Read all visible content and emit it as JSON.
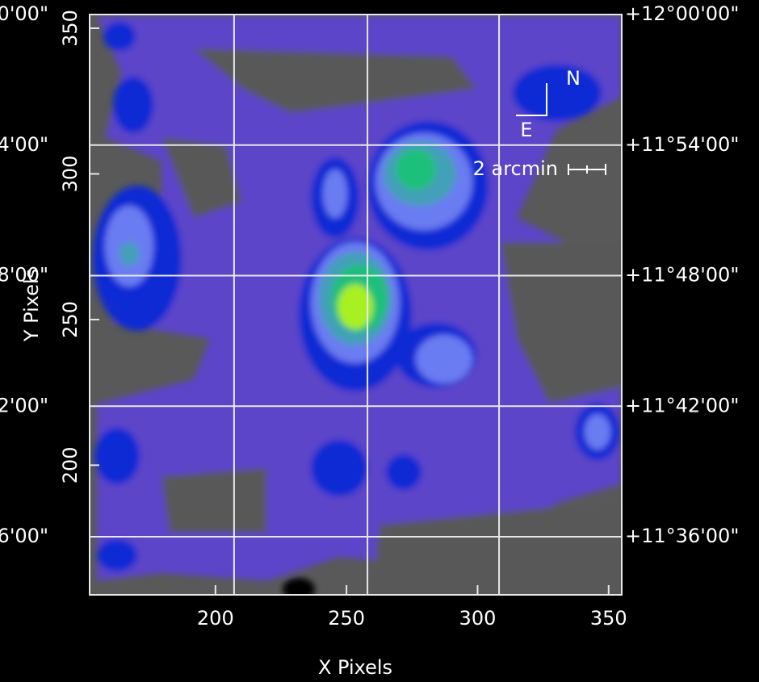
{
  "chart_data": {
    "type": "image",
    "xlabel": "X Pixels",
    "ylabel": "Y Pixels",
    "xlim": [
      152,
      355
    ],
    "xticks": [
      200,
      250,
      300,
      350
    ],
    "ylim": [
      155.5,
      354.7
    ],
    "yticks": [
      200,
      250,
      300,
      350
    ],
    "y2lim": [
      693.33,
      720
    ],
    "y2ticks": [
      {
        "value": 720,
        "label": "+12°00'00\""
      },
      {
        "value": 714,
        "label": "+11°54'00\""
      },
      {
        "value": 708,
        "label": "+11°48'00\""
      },
      {
        "value": 702,
        "label": "+11°42'00\""
      },
      {
        "value": 696,
        "label": "+11°36'00\""
      }
    ],
    "left_labels": [
      {
        "value": 720,
        "label": "0'00\""
      },
      {
        "value": 714,
        "label": "4'00\""
      },
      {
        "value": 708,
        "label": "8'00\""
      },
      {
        "value": 702,
        "label": "2'00\""
      },
      {
        "value": 696,
        "label": "6'00\""
      }
    ],
    "xgrid": [
      207.1,
      258,
      308.2
    ],
    "grid": true,
    "compass": {
      "north": "N",
      "east": "E"
    },
    "scale_bar": "2 arcmin"
  }
}
